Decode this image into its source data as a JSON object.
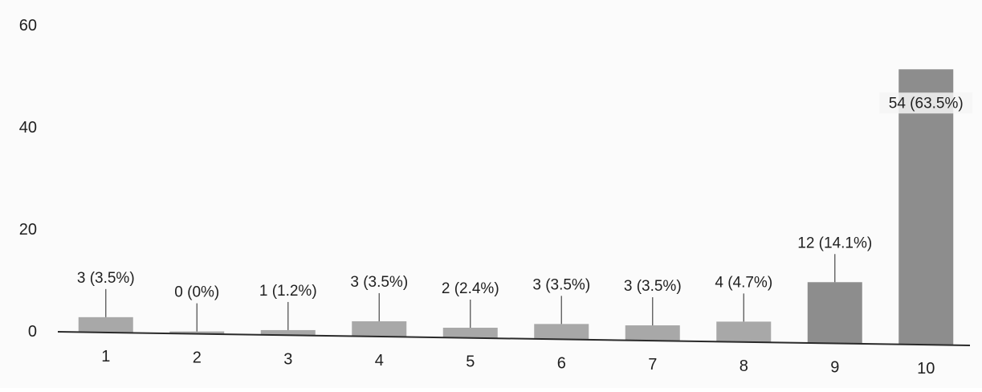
{
  "chart_data": {
    "type": "bar",
    "categories": [
      "1",
      "2",
      "3",
      "4",
      "5",
      "6",
      "7",
      "8",
      "9",
      "10"
    ],
    "values": [
      3,
      0,
      1,
      3,
      2,
      3,
      3,
      4,
      12,
      54
    ],
    "data_labels": [
      "3 (3.5%)",
      "0 (0%)",
      "1 (1.2%)",
      "3 (3.5%)",
      "2 (2.4%)",
      "3 (3.5%)",
      "3 (3.5%)",
      "4 (4.7%)",
      "12 (14.1%)",
      "54 (63.5%)"
    ],
    "yticks": [
      "0",
      "20",
      "40",
      "60"
    ],
    "ytick_values": [
      0,
      20,
      40,
      60
    ],
    "ylim": [
      0,
      60
    ],
    "title": "",
    "xlabel": "",
    "ylabel": "",
    "grid": false,
    "legend": "none",
    "colors": {
      "bar": "#a8a8a8",
      "bar_dark": "#8d8d8d",
      "axis": "#2a2a2a",
      "leader": "#555555"
    }
  }
}
